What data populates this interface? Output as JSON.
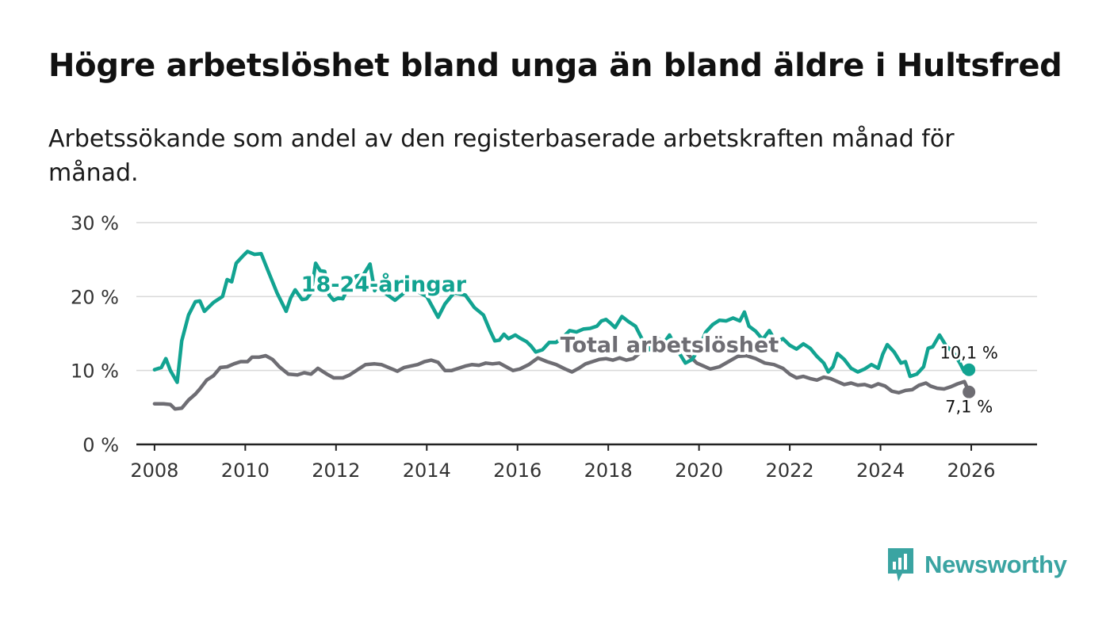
{
  "title": "Högre arbetslöshet bland unga än bland äldre i Hultsfred",
  "subtitle": "Arbetssökande som andel av den registerbaserade arbetskraften månad för månad.",
  "brand": {
    "name": "Newsworthy",
    "color": "#3aa4a2"
  },
  "chart_data": {
    "type": "line",
    "title": "Högre arbetslöshet bland unga än bland äldre i Hultsfred",
    "subtitle": "Arbetssökande som andel av den registerbaserade arbetskraften månad för månad.",
    "xlabel": "",
    "ylabel": "",
    "xlim": [
      2007.6,
      2027.45
    ],
    "ylim": [
      0,
      30
    ],
    "grid": true,
    "y_ticks": [
      {
        "value": 0,
        "label": "0 %"
      },
      {
        "value": 10,
        "label": "10 %"
      },
      {
        "value": 20,
        "label": "20 %"
      },
      {
        "value": 30,
        "label": "30 %"
      }
    ],
    "x_ticks": [
      {
        "value": 2008,
        "label": "2008"
      },
      {
        "value": 2010,
        "label": "2010"
      },
      {
        "value": 2012,
        "label": "2012"
      },
      {
        "value": 2014,
        "label": "2014"
      },
      {
        "value": 2016,
        "label": "2016"
      },
      {
        "value": 2018,
        "label": "2018"
      },
      {
        "value": 2020,
        "label": "2020"
      },
      {
        "value": 2022,
        "label": "2022"
      },
      {
        "value": 2024,
        "label": "2024"
      },
      {
        "value": 2026,
        "label": "2026"
      }
    ],
    "series": [
      {
        "name": "18-24-åringar",
        "label": "18-24-åringar",
        "color": "#12a391",
        "label_at": [
          2013.05,
          20.7
        ],
        "end_label": "10,1 %",
        "end_value": 10.1,
        "points": [
          [
            2008.0,
            10.1
          ],
          [
            2008.15,
            10.4
          ],
          [
            2008.25,
            11.6
          ],
          [
            2008.35,
            10.0
          ],
          [
            2008.5,
            8.4
          ],
          [
            2008.6,
            14.0
          ],
          [
            2008.75,
            17.5
          ],
          [
            2008.9,
            19.3
          ],
          [
            2009.0,
            19.4
          ],
          [
            2009.1,
            18.0
          ],
          [
            2009.3,
            19.2
          ],
          [
            2009.5,
            20.0
          ],
          [
            2009.6,
            22.3
          ],
          [
            2009.7,
            22.0
          ],
          [
            2009.8,
            24.5
          ],
          [
            2009.95,
            25.5
          ],
          [
            2010.05,
            26.1
          ],
          [
            2010.2,
            25.7
          ],
          [
            2010.35,
            25.8
          ],
          [
            2010.5,
            23.5
          ],
          [
            2010.7,
            20.5
          ],
          [
            2010.9,
            18.0
          ],
          [
            2011.0,
            19.8
          ],
          [
            2011.1,
            20.9
          ],
          [
            2011.25,
            19.6
          ],
          [
            2011.35,
            19.7
          ],
          [
            2011.45,
            20.5
          ],
          [
            2011.55,
            24.5
          ],
          [
            2011.65,
            23.5
          ],
          [
            2011.75,
            23.4
          ],
          [
            2011.85,
            20.2
          ],
          [
            2011.95,
            19.5
          ],
          [
            2012.05,
            19.8
          ],
          [
            2012.15,
            19.7
          ],
          [
            2012.3,
            21.7
          ],
          [
            2012.45,
            22.8
          ],
          [
            2012.6,
            22.9
          ],
          [
            2012.75,
            24.4
          ],
          [
            2012.85,
            20.8
          ],
          [
            2012.95,
            21.6
          ],
          [
            2013.05,
            20.6
          ],
          [
            2013.3,
            19.5
          ],
          [
            2013.5,
            20.5
          ],
          [
            2013.7,
            21.0
          ],
          [
            2014.0,
            20.0
          ],
          [
            2014.25,
            17.2
          ],
          [
            2014.4,
            19.0
          ],
          [
            2014.6,
            20.5
          ],
          [
            2014.85,
            20.2
          ],
          [
            2015.05,
            18.5
          ],
          [
            2015.25,
            17.5
          ],
          [
            2015.4,
            15.3
          ],
          [
            2015.5,
            14.0
          ],
          [
            2015.6,
            14.1
          ],
          [
            2015.7,
            14.9
          ],
          [
            2015.8,
            14.3
          ],
          [
            2015.95,
            14.8
          ],
          [
            2016.05,
            14.4
          ],
          [
            2016.2,
            13.9
          ],
          [
            2016.3,
            13.3
          ],
          [
            2016.4,
            12.5
          ],
          [
            2016.55,
            12.8
          ],
          [
            2016.7,
            13.8
          ],
          [
            2016.85,
            13.8
          ],
          [
            2017.0,
            14.5
          ],
          [
            2017.15,
            15.4
          ],
          [
            2017.3,
            15.2
          ],
          [
            2017.45,
            15.6
          ],
          [
            2017.6,
            15.7
          ],
          [
            2017.75,
            16.0
          ],
          [
            2017.85,
            16.7
          ],
          [
            2017.95,
            16.9
          ],
          [
            2018.05,
            16.4
          ],
          [
            2018.15,
            15.8
          ],
          [
            2018.3,
            17.3
          ],
          [
            2018.45,
            16.6
          ],
          [
            2018.6,
            16.0
          ],
          [
            2018.75,
            14.2
          ],
          [
            2018.9,
            12.8
          ],
          [
            2019.05,
            14.8
          ],
          [
            2019.2,
            13.5
          ],
          [
            2019.35,
            14.8
          ],
          [
            2019.5,
            13.0
          ],
          [
            2019.7,
            11.0
          ],
          [
            2019.85,
            11.5
          ],
          [
            2020.0,
            13.0
          ],
          [
            2020.15,
            15.2
          ],
          [
            2020.3,
            16.2
          ],
          [
            2020.45,
            16.8
          ],
          [
            2020.6,
            16.7
          ],
          [
            2020.75,
            17.1
          ],
          [
            2020.9,
            16.7
          ],
          [
            2021.0,
            17.9
          ],
          [
            2021.1,
            16.0
          ],
          [
            2021.25,
            15.3
          ],
          [
            2021.4,
            14.2
          ],
          [
            2021.55,
            15.4
          ],
          [
            2021.7,
            13.8
          ],
          [
            2021.85,
            14.3
          ],
          [
            2022.0,
            13.4
          ],
          [
            2022.15,
            12.9
          ],
          [
            2022.3,
            13.6
          ],
          [
            2022.45,
            13.0
          ],
          [
            2022.6,
            11.9
          ],
          [
            2022.75,
            11.0
          ],
          [
            2022.85,
            9.8
          ],
          [
            2022.95,
            10.5
          ],
          [
            2023.05,
            12.3
          ],
          [
            2023.2,
            11.5
          ],
          [
            2023.35,
            10.3
          ],
          [
            2023.5,
            9.8
          ],
          [
            2023.65,
            10.2
          ],
          [
            2023.8,
            10.8
          ],
          [
            2023.95,
            10.3
          ],
          [
            2024.05,
            12.2
          ],
          [
            2024.15,
            13.5
          ],
          [
            2024.3,
            12.5
          ],
          [
            2024.45,
            11.0
          ],
          [
            2024.55,
            11.2
          ],
          [
            2024.65,
            9.2
          ],
          [
            2024.8,
            9.5
          ],
          [
            2024.95,
            10.5
          ],
          [
            2025.05,
            13.0
          ],
          [
            2025.15,
            13.2
          ],
          [
            2025.3,
            14.8
          ],
          [
            2025.45,
            13.3
          ],
          [
            2025.6,
            12.5
          ],
          [
            2025.75,
            11.0
          ],
          [
            2025.85,
            9.8
          ],
          [
            2025.95,
            10.1
          ]
        ]
      },
      {
        "name": "Total arbetslöshet",
        "label": "Total arbetslöshet",
        "color": "#6e6d73",
        "label_at": [
          2019.35,
          12.5
        ],
        "end_label": "7,1 %",
        "end_value": 7.1,
        "points": [
          [
            2008.0,
            5.5
          ],
          [
            2008.2,
            5.5
          ],
          [
            2008.35,
            5.4
          ],
          [
            2008.45,
            4.8
          ],
          [
            2008.6,
            4.9
          ],
          [
            2008.75,
            6.0
          ],
          [
            2008.9,
            6.8
          ],
          [
            2009.0,
            7.5
          ],
          [
            2009.15,
            8.7
          ],
          [
            2009.3,
            9.3
          ],
          [
            2009.45,
            10.4
          ],
          [
            2009.6,
            10.5
          ],
          [
            2009.75,
            10.9
          ],
          [
            2009.9,
            11.2
          ],
          [
            2010.05,
            11.2
          ],
          [
            2010.15,
            11.8
          ],
          [
            2010.3,
            11.8
          ],
          [
            2010.45,
            12.0
          ],
          [
            2010.6,
            11.5
          ],
          [
            2010.75,
            10.5
          ],
          [
            2010.95,
            9.5
          ],
          [
            2011.15,
            9.4
          ],
          [
            2011.3,
            9.7
          ],
          [
            2011.45,
            9.5
          ],
          [
            2011.6,
            10.3
          ],
          [
            2011.8,
            9.5
          ],
          [
            2011.95,
            9.0
          ],
          [
            2012.15,
            9.0
          ],
          [
            2012.3,
            9.4
          ],
          [
            2012.5,
            10.2
          ],
          [
            2012.65,
            10.8
          ],
          [
            2012.85,
            10.9
          ],
          [
            2013.0,
            10.8
          ],
          [
            2013.2,
            10.3
          ],
          [
            2013.35,
            9.9
          ],
          [
            2013.5,
            10.4
          ],
          [
            2013.65,
            10.6
          ],
          [
            2013.8,
            10.8
          ],
          [
            2013.95,
            11.2
          ],
          [
            2014.1,
            11.4
          ],
          [
            2014.25,
            11.1
          ],
          [
            2014.4,
            10.0
          ],
          [
            2014.55,
            10.0
          ],
          [
            2014.7,
            10.3
          ],
          [
            2014.85,
            10.6
          ],
          [
            2015.0,
            10.8
          ],
          [
            2015.15,
            10.7
          ],
          [
            2015.3,
            11.0
          ],
          [
            2015.45,
            10.9
          ],
          [
            2015.6,
            11.0
          ],
          [
            2015.75,
            10.5
          ],
          [
            2015.9,
            10.0
          ],
          [
            2016.05,
            10.2
          ],
          [
            2016.25,
            10.8
          ],
          [
            2016.45,
            11.7
          ],
          [
            2016.65,
            11.2
          ],
          [
            2016.85,
            10.8
          ],
          [
            2017.05,
            10.2
          ],
          [
            2017.2,
            9.8
          ],
          [
            2017.35,
            10.3
          ],
          [
            2017.5,
            10.9
          ],
          [
            2017.65,
            11.2
          ],
          [
            2017.8,
            11.5
          ],
          [
            2017.95,
            11.6
          ],
          [
            2018.1,
            11.4
          ],
          [
            2018.25,
            11.7
          ],
          [
            2018.4,
            11.4
          ],
          [
            2018.55,
            11.6
          ],
          [
            2018.7,
            12.4
          ],
          [
            2018.8,
            13.5
          ],
          [
            2018.95,
            14.1
          ],
          [
            2019.1,
            14.3
          ],
          [
            2019.25,
            14.0
          ],
          [
            2019.4,
            13.5
          ],
          [
            2019.55,
            13.2
          ],
          [
            2019.75,
            12.2
          ],
          [
            2019.95,
            11.0
          ],
          [
            2020.1,
            10.6
          ],
          [
            2020.25,
            10.2
          ],
          [
            2020.45,
            10.5
          ],
          [
            2020.65,
            11.2
          ],
          [
            2020.85,
            11.9
          ],
          [
            2021.05,
            12.0
          ],
          [
            2021.25,
            11.6
          ],
          [
            2021.45,
            11.0
          ],
          [
            2021.65,
            10.8
          ],
          [
            2021.85,
            10.3
          ],
          [
            2022.0,
            9.5
          ],
          [
            2022.15,
            9.0
          ],
          [
            2022.3,
            9.2
          ],
          [
            2022.45,
            8.9
          ],
          [
            2022.6,
            8.7
          ],
          [
            2022.75,
            9.1
          ],
          [
            2022.9,
            8.9
          ],
          [
            2023.05,
            8.5
          ],
          [
            2023.2,
            8.1
          ],
          [
            2023.35,
            8.3
          ],
          [
            2023.5,
            8.0
          ],
          [
            2023.65,
            8.1
          ],
          [
            2023.8,
            7.8
          ],
          [
            2023.95,
            8.2
          ],
          [
            2024.1,
            7.9
          ],
          [
            2024.25,
            7.2
          ],
          [
            2024.4,
            7.0
          ],
          [
            2024.55,
            7.3
          ],
          [
            2024.7,
            7.4
          ],
          [
            2024.85,
            8.0
          ],
          [
            2025.0,
            8.3
          ],
          [
            2025.1,
            7.9
          ],
          [
            2025.25,
            7.6
          ],
          [
            2025.4,
            7.5
          ],
          [
            2025.55,
            7.8
          ],
          [
            2025.7,
            8.2
          ],
          [
            2025.85,
            8.5
          ],
          [
            2025.95,
            7.1
          ]
        ]
      }
    ]
  }
}
